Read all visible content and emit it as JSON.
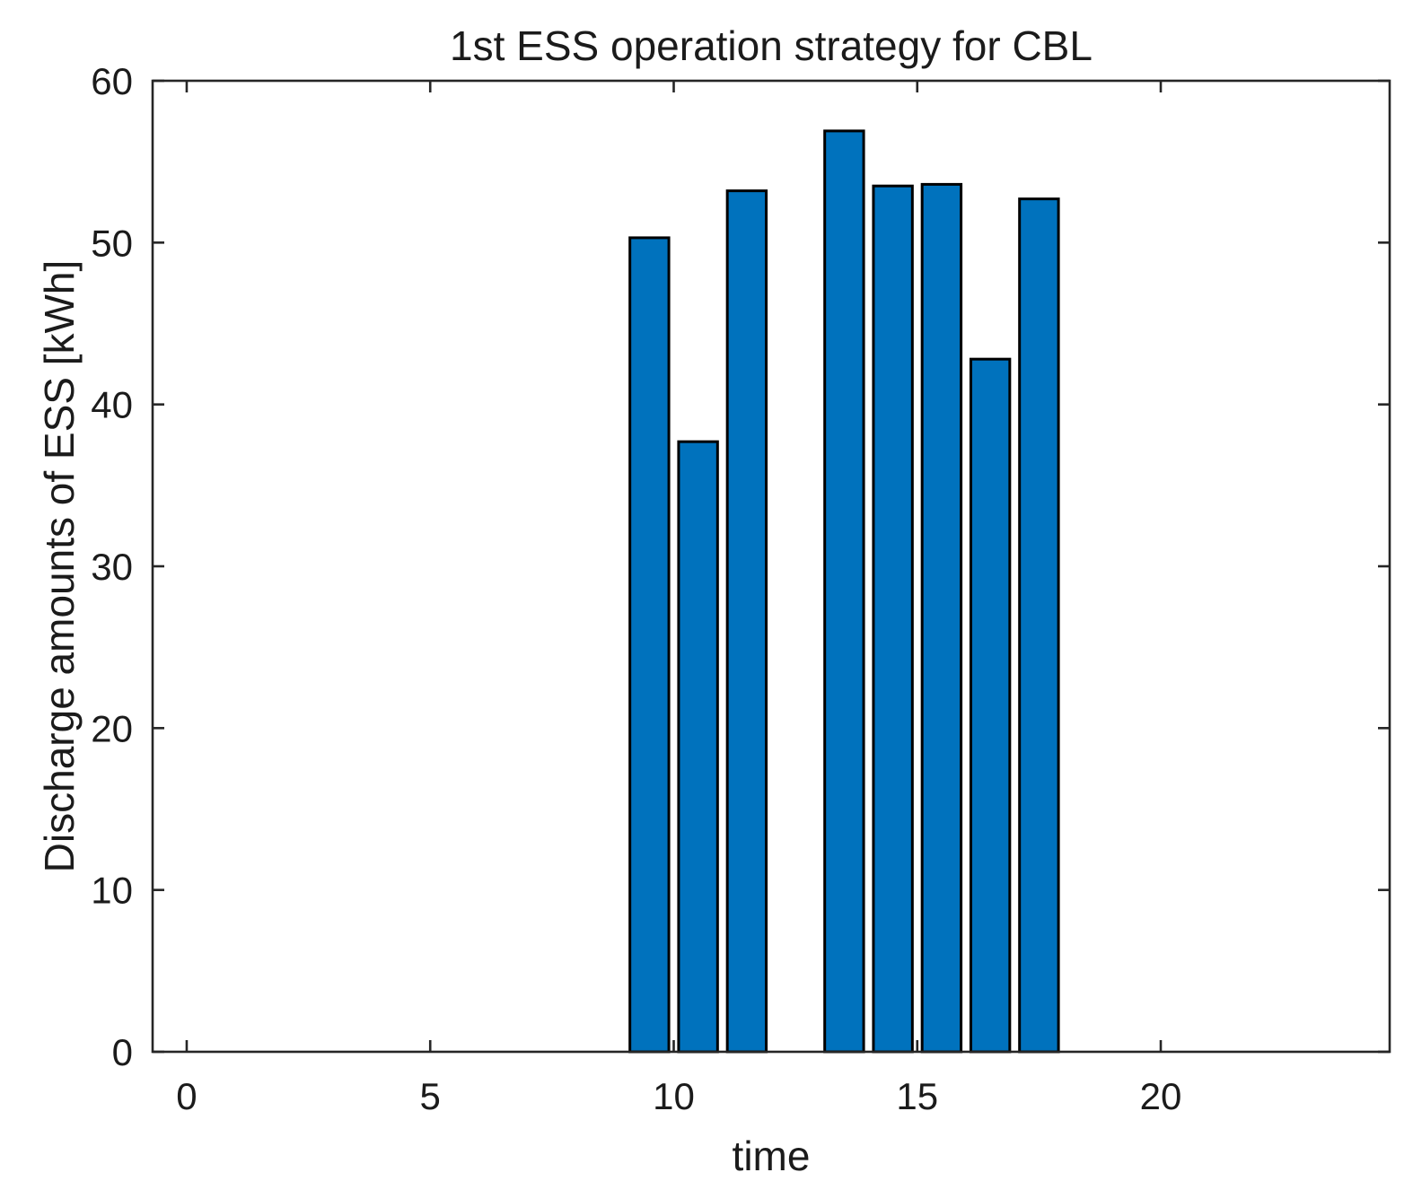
{
  "chart_data": {
    "type": "bar",
    "title": "1st ESS operation strategy for CBL",
    "xlabel": "time",
    "ylabel": "Discharge amounts of ESS [kWh]",
    "x": [
      9.5,
      10.5,
      11.5,
      13.5,
      14.5,
      15.5,
      16.5,
      17.5
    ],
    "values": [
      50.3,
      37.7,
      53.2,
      56.9,
      53.5,
      53.6,
      42.8,
      52.7
    ],
    "bar_width": 0.8,
    "bar_fill": "#0072BD",
    "bar_edge": "#000000",
    "axis_color": "#262626",
    "background": "#FFFFFF",
    "xlim": [
      -0.7,
      24.7
    ],
    "ylim": [
      0,
      60
    ],
    "xticks": [
      0,
      5,
      10,
      15,
      20
    ],
    "yticks": [
      0,
      10,
      20,
      30,
      40,
      50,
      60
    ],
    "grid": false,
    "tick_direction": "in",
    "legend": null
  }
}
